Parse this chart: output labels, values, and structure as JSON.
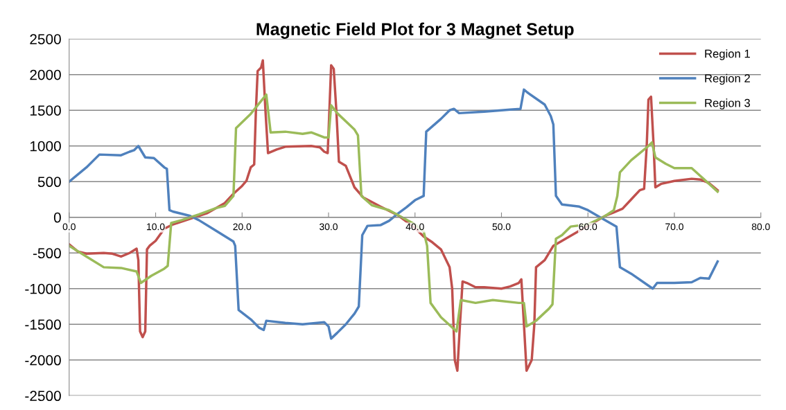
{
  "chart_data": {
    "type": "line",
    "title": "Magnetic Field Plot for 3 Magnet Setup",
    "xlim": [
      0,
      80
    ],
    "xticks": [
      {
        "value": 0,
        "label": "0.0"
      },
      {
        "value": 10,
        "label": "10.0"
      },
      {
        "value": 20,
        "label": "20.0"
      },
      {
        "value": 30,
        "label": "30.0"
      },
      {
        "value": 40,
        "label": "40.0"
      },
      {
        "value": 50,
        "label": "50.0"
      },
      {
        "value": 60,
        "label": "60.0"
      },
      {
        "value": 70,
        "label": "70.0"
      },
      {
        "value": 80,
        "label": "80.0"
      }
    ],
    "ylim": [
      -2500,
      2500
    ],
    "yticks": [
      -2500,
      -2000,
      -1500,
      -1000,
      -500,
      0,
      500,
      1000,
      1500,
      2000,
      2500
    ],
    "grid": "y",
    "legend": "top right",
    "marker": "none",
    "line_style": "solid",
    "series": [
      {
        "name": "Region 1",
        "color": "#c0504d",
        "x": [
          0,
          1,
          2,
          4,
          5,
          6,
          7,
          7.8,
          8.0,
          8.2,
          8.5,
          8.8,
          9.0,
          9.3,
          10,
          11,
          12,
          14,
          16,
          18,
          19,
          20,
          20.5,
          21,
          21.4,
          21.6,
          21.8,
          22.2,
          22.4,
          22.7,
          23,
          24,
          25,
          28,
          29,
          29.5,
          29.9,
          30.1,
          30.3,
          30.6,
          30.9,
          31.2,
          32,
          33,
          34,
          36,
          38,
          40,
          41,
          42,
          43,
          44,
          44.3,
          44.6,
          44.9,
          45.2,
          45.5,
          46,
          47,
          48,
          50,
          51,
          52,
          52.3,
          52.6,
          52.9,
          53.5,
          53.8,
          54,
          55,
          56,
          57,
          60,
          62,
          63,
          64,
          65,
          66,
          66.5,
          66.8,
          67,
          67.3,
          67.6,
          67.8,
          68.5,
          70,
          72,
          73,
          74,
          75
        ],
        "values": [
          -380,
          -480,
          -510,
          -500,
          -510,
          -550,
          -500,
          -440,
          -600,
          -1600,
          -1680,
          -1600,
          -450,
          -400,
          -330,
          -160,
          -100,
          -20,
          60,
          200,
          330,
          440,
          510,
          700,
          740,
          1500,
          2050,
          2100,
          2200,
          1500,
          900,
          950,
          990,
          1000,
          980,
          920,
          900,
          1500,
          2130,
          2080,
          1500,
          780,
          720,
          420,
          280,
          150,
          30,
          -150,
          -270,
          -350,
          -450,
          -700,
          -1000,
          -2000,
          -2150,
          -1500,
          -900,
          -920,
          -980,
          -980,
          -1000,
          -970,
          -920,
          -870,
          -1500,
          -2150,
          -2000,
          -1500,
          -700,
          -600,
          -400,
          -330,
          -120,
          20,
          70,
          120,
          250,
          380,
          400,
          1000,
          1650,
          1690,
          1000,
          420,
          470,
          510,
          540,
          530,
          480,
          380
        ]
      },
      {
        "name": "Region 2",
        "color": "#4f81bd",
        "x": [
          0,
          2,
          3.5,
          6,
          7,
          7.5,
          8,
          8.8,
          9.8,
          11,
          11.3,
          11.6,
          12,
          14,
          15,
          17,
          19,
          19.2,
          19.6,
          21,
          22,
          22.5,
          22.8,
          25,
          27,
          29.5,
          30,
          30.3,
          31,
          32,
          33,
          33.5,
          33.9,
          34.5,
          36,
          37,
          38,
          39,
          40,
          41,
          41.3,
          43,
          44,
          44.5,
          45.1,
          48,
          51,
          52.2,
          52.6,
          53,
          55,
          55.7,
          56,
          56.3,
          57,
          59,
          60,
          62,
          63.3,
          63.7,
          65,
          67.5,
          68,
          70,
          72,
          73,
          74,
          75
        ],
        "values": [
          500,
          700,
          880,
          870,
          920,
          940,
          1000,
          840,
          830,
          700,
          680,
          100,
          80,
          20,
          -40,
          -190,
          -340,
          -400,
          -1300,
          -1430,
          -1550,
          -1580,
          -1450,
          -1480,
          -1500,
          -1470,
          -1530,
          -1700,
          -1620,
          -1500,
          -1350,
          -1250,
          -250,
          -120,
          -110,
          -50,
          50,
          140,
          240,
          300,
          1200,
          1380,
          1500,
          1520,
          1460,
          1480,
          1510,
          1520,
          1790,
          1750,
          1580,
          1420,
          1300,
          300,
          180,
          150,
          100,
          -40,
          -130,
          -700,
          -790,
          -1000,
          -920,
          -920,
          -910,
          -850,
          -860,
          -620
        ]
      },
      {
        "name": "Region 3",
        "color": "#9bbb59",
        "x": [
          0,
          2,
          4,
          6,
          7.8,
          8.3,
          9.5,
          11,
          11.4,
          11.8,
          13,
          15,
          17,
          18,
          19,
          19.3,
          21,
          22,
          22.8,
          23.3,
          25,
          27,
          28,
          29.5,
          30,
          30.3,
          31,
          33,
          33.4,
          33.8,
          35,
          37,
          40,
          41,
          41.4,
          41.8,
          43,
          44.8,
          45.3,
          47,
          49,
          52,
          52.6,
          52.9,
          54,
          55.5,
          55.9,
          56.3,
          57,
          58,
          60,
          62,
          63,
          63.4,
          63.7,
          65,
          66,
          67,
          67.4,
          67.8,
          69,
          70,
          72,
          73,
          75
        ],
        "values": [
          -400,
          -550,
          -700,
          -710,
          -760,
          -920,
          -820,
          -720,
          -680,
          -80,
          -40,
          40,
          130,
          160,
          300,
          1250,
          1450,
          1600,
          1720,
          1190,
          1200,
          1170,
          1190,
          1120,
          1120,
          1570,
          1460,
          1230,
          1150,
          300,
          170,
          100,
          -100,
          -200,
          -400,
          -1200,
          -1400,
          -1600,
          -1160,
          -1200,
          -1160,
          -1200,
          -1200,
          -1530,
          -1450,
          -1280,
          -1220,
          -300,
          -250,
          -130,
          -100,
          20,
          100,
          300,
          630,
          800,
          900,
          1000,
          1050,
          840,
          750,
          690,
          690,
          580,
          360
        ]
      }
    ]
  }
}
